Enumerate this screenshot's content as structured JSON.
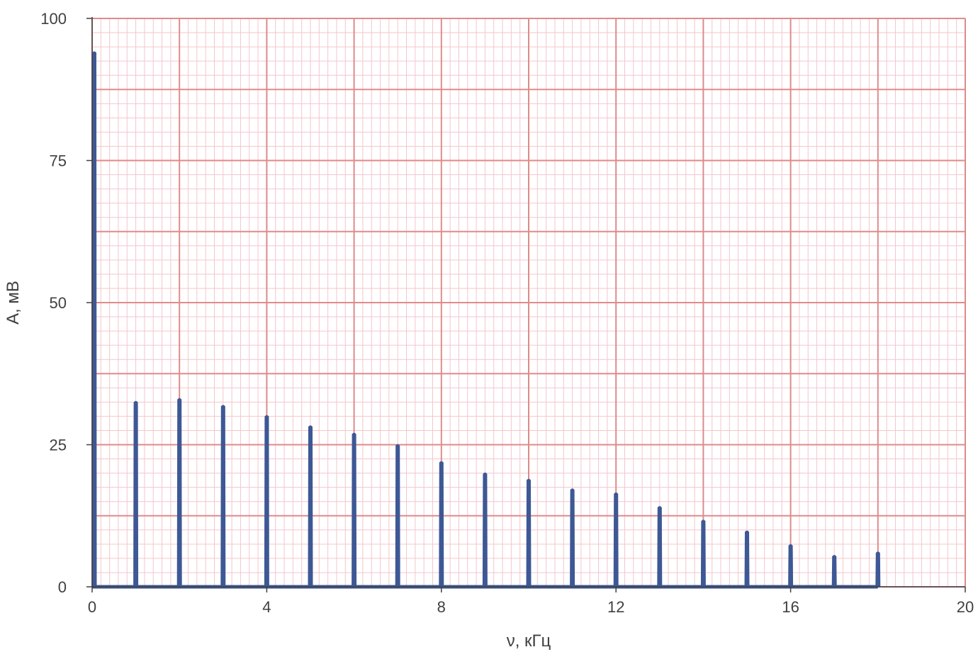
{
  "chart_data": {
    "type": "bar",
    "title": "",
    "xlabel": "ν, кГц",
    "ylabel": "А, мВ",
    "xlim": [
      0,
      20
    ],
    "ylim": [
      0,
      100
    ],
    "xticks": [
      0,
      4,
      8,
      12,
      16,
      20
    ],
    "yticks": [
      0,
      25,
      50,
      75,
      100
    ],
    "grid": true,
    "x": [
      0,
      1,
      2,
      3,
      4,
      5,
      6,
      7,
      8,
      9,
      10,
      11,
      12,
      13,
      14,
      15,
      16,
      17,
      18
    ],
    "values": [
      94.2,
      32.7,
      33.2,
      32.0,
      30.2,
      28.4,
      27.1,
      25.1,
      22.1,
      20.1,
      19.0,
      17.3,
      16.6,
      14.2,
      11.8,
      9.9,
      7.5,
      5.6,
      6.2
    ],
    "colors": {
      "series": "#3e5895",
      "grid_major": "#e08a8a",
      "grid_minor": "#f4c6cb",
      "axis": "#404040",
      "background": "#ffffff"
    }
  }
}
